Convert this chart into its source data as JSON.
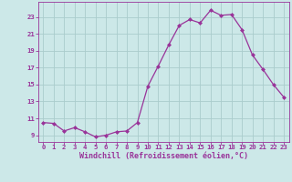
{
  "x": [
    0,
    1,
    2,
    3,
    4,
    5,
    6,
    7,
    8,
    9,
    10,
    11,
    12,
    13,
    14,
    15,
    16,
    17,
    18,
    19,
    20,
    21,
    22,
    23
  ],
  "y": [
    10.5,
    10.4,
    9.5,
    9.9,
    9.4,
    8.8,
    9.0,
    9.4,
    9.5,
    10.5,
    14.8,
    17.2,
    19.7,
    22.0,
    22.7,
    22.3,
    23.8,
    23.2,
    23.3,
    21.5,
    18.5,
    16.8,
    15.0,
    13.5
  ],
  "line_color": "#993399",
  "marker_color": "#993399",
  "bg_color": "#cce8e8",
  "grid_color": "#aacccc",
  "xlabel": "Windchill (Refroidissement éolien,°C)",
  "xlabel_color": "#993399",
  "tick_color": "#993399",
  "spine_color": "#993399",
  "xlim": [
    -0.5,
    23.5
  ],
  "ylim": [
    8.2,
    24.8
  ],
  "yticks": [
    9,
    11,
    13,
    15,
    17,
    19,
    21,
    23
  ],
  "xticks": [
    0,
    1,
    2,
    3,
    4,
    5,
    6,
    7,
    8,
    9,
    10,
    11,
    12,
    13,
    14,
    15,
    16,
    17,
    18,
    19,
    20,
    21,
    22,
    23
  ],
  "tick_fontsize": 5.2,
  "xlabel_fontsize": 6.0,
  "marker_size": 2.0,
  "line_width": 0.9
}
